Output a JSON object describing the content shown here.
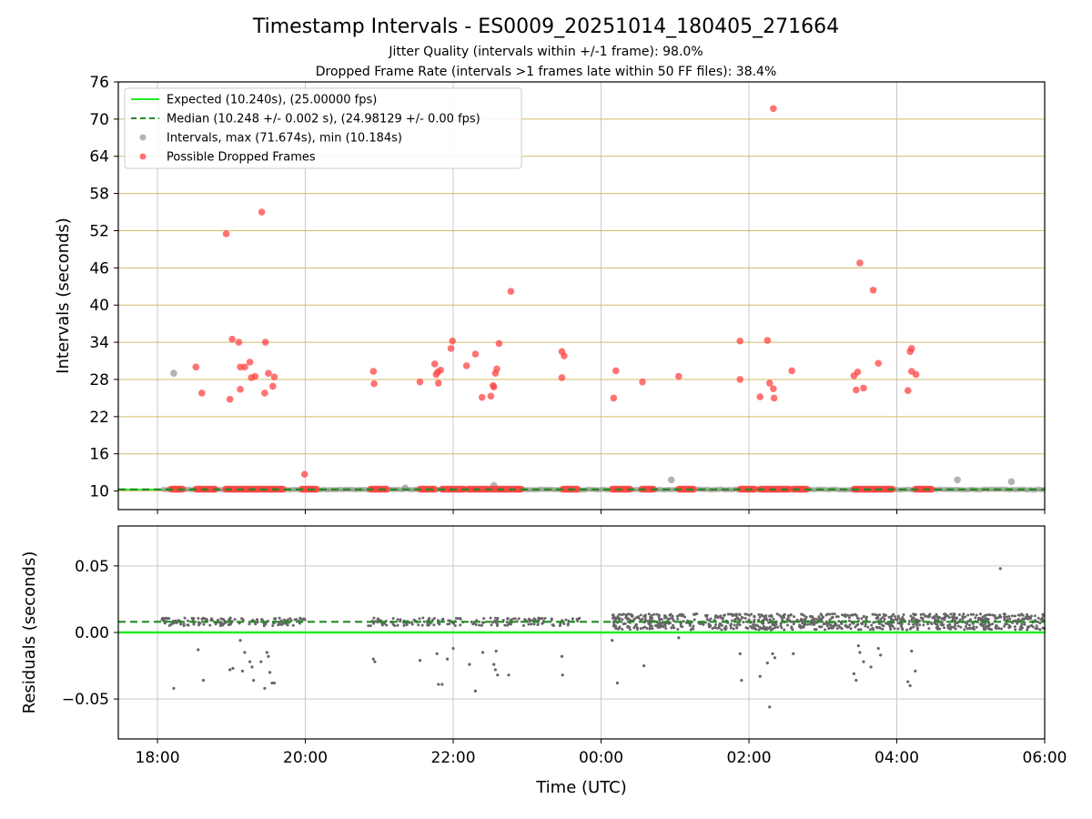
{
  "title": "Timestamp Intervals - ES0009_20251014_180405_271664",
  "subtitle_1": "Jitter Quality (intervals within +/-1 frame): 98.0%",
  "subtitle_2": "Dropped Frame Rate (intervals >1 frames late within 50 FF files): 38.4%",
  "colors": {
    "expected": "#22ee22",
    "median": "#228b22",
    "intervals": "#999999",
    "dropped": "#ff4444",
    "hgrid_top": "#d4bc6a",
    "grid": "#c8c8c8",
    "residual_points": "#666666"
  },
  "chart_data": [
    {
      "type": "scatter",
      "panel": "top",
      "ylabel": "Intervals (seconds)",
      "ylim": [
        7,
        76
      ],
      "yticks": [
        "10",
        "16",
        "22",
        "28",
        "34",
        "40",
        "46",
        "52",
        "58",
        "64",
        "70",
        "76"
      ],
      "yticks_values": [
        10,
        16,
        22,
        28,
        34,
        40,
        46,
        52,
        58,
        64,
        70,
        76
      ],
      "xlim_hours": [
        17.47,
        30.0
      ],
      "expected_value": 10.24,
      "median_value": 10.248,
      "legend": {
        "expected": "Expected (10.240s), (25.00000 fps)",
        "median": "Median (10.248 +/- 0.002 s), (24.98129 +/- 0.00 fps)",
        "intervals": "Intervals, max (71.674s), min (10.184s)",
        "dropped": "Possible Dropped Frames"
      },
      "intervals_outliers": [
        {
          "x": 18.22,
          "y": 29.0
        },
        {
          "x": 21.35,
          "y": 10.5
        },
        {
          "x": 22.55,
          "y": 10.9
        },
        {
          "x": 24.95,
          "y": 11.8
        },
        {
          "x": 28.82,
          "y": 11.8
        },
        {
          "x": 29.55,
          "y": 11.5
        }
      ],
      "dropped_cluster_y": 10.3,
      "dropped_clusters": [
        [
          18.18,
          18.35
        ],
        [
          18.52,
          18.78
        ],
        [
          18.92,
          19.7
        ],
        [
          19.95,
          20.15
        ],
        [
          20.88,
          21.1
        ],
        [
          21.55,
          21.75
        ],
        [
          21.85,
          22.15
        ],
        [
          22.2,
          22.92
        ],
        [
          23.48,
          23.68
        ],
        [
          24.15,
          24.4
        ],
        [
          24.55,
          24.72
        ],
        [
          25.05,
          25.25
        ],
        [
          25.88,
          26.08
        ],
        [
          26.15,
          26.55
        ],
        [
          26.6,
          26.78
        ],
        [
          27.42,
          27.95
        ],
        [
          28.25,
          28.48
        ]
      ],
      "dropped_points": [
        {
          "x": 18.52,
          "y": 30.0
        },
        {
          "x": 18.6,
          "y": 25.8
        },
        {
          "x": 18.93,
          "y": 51.5
        },
        {
          "x": 18.98,
          "y": 24.8
        },
        {
          "x": 19.01,
          "y": 34.5
        },
        {
          "x": 19.1,
          "y": 34.0
        },
        {
          "x": 19.12,
          "y": 30.0
        },
        {
          "x": 19.12,
          "y": 26.4
        },
        {
          "x": 19.18,
          "y": 30.0
        },
        {
          "x": 19.25,
          "y": 30.8
        },
        {
          "x": 19.27,
          "y": 28.3
        },
        {
          "x": 19.32,
          "y": 28.5
        },
        {
          "x": 19.41,
          "y": 55.0
        },
        {
          "x": 19.45,
          "y": 25.8
        },
        {
          "x": 19.46,
          "y": 34.0
        },
        {
          "x": 19.5,
          "y": 29.0
        },
        {
          "x": 19.56,
          "y": 26.9
        },
        {
          "x": 19.58,
          "y": 28.4
        },
        {
          "x": 19.99,
          "y": 12.7
        },
        {
          "x": 20.92,
          "y": 29.3
        },
        {
          "x": 20.93,
          "y": 27.3
        },
        {
          "x": 21.55,
          "y": 27.6
        },
        {
          "x": 21.75,
          "y": 30.5
        },
        {
          "x": 21.77,
          "y": 28.8
        },
        {
          "x": 21.79,
          "y": 29.2
        },
        {
          "x": 21.8,
          "y": 27.4
        },
        {
          "x": 21.83,
          "y": 29.5
        },
        {
          "x": 21.97,
          "y": 33.0
        },
        {
          "x": 21.99,
          "y": 34.2
        },
        {
          "x": 22.18,
          "y": 30.2
        },
        {
          "x": 22.3,
          "y": 32.1
        },
        {
          "x": 22.39,
          "y": 25.1
        },
        {
          "x": 22.51,
          "y": 25.3
        },
        {
          "x": 22.54,
          "y": 27.0
        },
        {
          "x": 22.55,
          "y": 26.8
        },
        {
          "x": 22.57,
          "y": 29.0
        },
        {
          "x": 22.59,
          "y": 29.7
        },
        {
          "x": 22.62,
          "y": 33.8
        },
        {
          "x": 22.78,
          "y": 42.2
        },
        {
          "x": 23.47,
          "y": 32.5
        },
        {
          "x": 23.5,
          "y": 31.8
        },
        {
          "x": 23.47,
          "y": 28.3
        },
        {
          "x": 24.2,
          "y": 29.4
        },
        {
          "x": 24.17,
          "y": 25.0
        },
        {
          "x": 24.56,
          "y": 27.6
        },
        {
          "x": 25.05,
          "y": 28.5
        },
        {
          "x": 25.88,
          "y": 34.2
        },
        {
          "x": 25.88,
          "y": 28.0
        },
        {
          "x": 26.15,
          "y": 25.2
        },
        {
          "x": 26.25,
          "y": 34.3
        },
        {
          "x": 26.28,
          "y": 27.4
        },
        {
          "x": 26.33,
          "y": 26.5
        },
        {
          "x": 26.34,
          "y": 25.0
        },
        {
          "x": 26.33,
          "y": 71.7
        },
        {
          "x": 26.58,
          "y": 29.4
        },
        {
          "x": 27.42,
          "y": 28.6
        },
        {
          "x": 27.45,
          "y": 26.3
        },
        {
          "x": 27.47,
          "y": 29.2
        },
        {
          "x": 27.5,
          "y": 46.8
        },
        {
          "x": 27.55,
          "y": 26.6
        },
        {
          "x": 27.68,
          "y": 42.4
        },
        {
          "x": 27.75,
          "y": 30.6
        },
        {
          "x": 28.15,
          "y": 26.2
        },
        {
          "x": 28.18,
          "y": 32.5
        },
        {
          "x": 28.2,
          "y": 33.0
        },
        {
          "x": 28.2,
          "y": 29.3
        },
        {
          "x": 28.26,
          "y": 28.8
        }
      ]
    },
    {
      "type": "scatter",
      "panel": "bottom",
      "ylabel": "Residuals (seconds)",
      "xlabel": "Time (UTC)",
      "ylim": [
        -0.08,
        0.08
      ],
      "yticks": [
        "−0.05",
        "0.00",
        "0.05"
      ],
      "yticks_values": [
        -0.05,
        0.0,
        0.05
      ],
      "xlim_hours": [
        17.47,
        30.0
      ],
      "xticks": [
        "18:00",
        "20:00",
        "22:00",
        "00:00",
        "02:00",
        "04:00",
        "06:00"
      ],
      "xticks_hours": [
        18,
        20,
        22,
        24,
        26,
        28,
        30
      ],
      "expected_value": 0.0,
      "median_value": 0.008,
      "residual_bands": [
        {
          "from": 18.05,
          "to": 20.0,
          "center": 0.008,
          "spread": 0.003,
          "density": 140
        },
        {
          "from": 20.85,
          "to": 23.8,
          "center": 0.008,
          "spread": 0.003,
          "density": 160
        },
        {
          "from": 24.15,
          "to": 30.0,
          "center": 0.008,
          "spread": 0.006,
          "density": 900
        }
      ],
      "residual_outliers": [
        {
          "x": 18.22,
          "y": -0.042
        },
        {
          "x": 18.55,
          "y": -0.013
        },
        {
          "x": 18.62,
          "y": -0.036
        },
        {
          "x": 18.98,
          "y": -0.028
        },
        {
          "x": 19.02,
          "y": -0.027
        },
        {
          "x": 19.12,
          "y": -0.006
        },
        {
          "x": 19.15,
          "y": -0.029
        },
        {
          "x": 19.18,
          "y": -0.015
        },
        {
          "x": 19.25,
          "y": -0.022
        },
        {
          "x": 19.28,
          "y": -0.026
        },
        {
          "x": 19.3,
          "y": -0.036
        },
        {
          "x": 19.4,
          "y": -0.022
        },
        {
          "x": 19.45,
          "y": -0.042
        },
        {
          "x": 19.48,
          "y": -0.015
        },
        {
          "x": 19.5,
          "y": -0.018
        },
        {
          "x": 19.52,
          "y": -0.03
        },
        {
          "x": 19.55,
          "y": -0.038
        },
        {
          "x": 19.58,
          "y": -0.038
        },
        {
          "x": 20.92,
          "y": -0.02
        },
        {
          "x": 20.94,
          "y": -0.022
        },
        {
          "x": 21.55,
          "y": -0.021
        },
        {
          "x": 21.78,
          "y": -0.016
        },
        {
          "x": 21.8,
          "y": -0.039
        },
        {
          "x": 21.85,
          "y": -0.039
        },
        {
          "x": 21.92,
          "y": -0.02
        },
        {
          "x": 22.0,
          "y": -0.012
        },
        {
          "x": 22.22,
          "y": -0.024
        },
        {
          "x": 22.3,
          "y": -0.044
        },
        {
          "x": 22.4,
          "y": -0.015
        },
        {
          "x": 22.55,
          "y": -0.024
        },
        {
          "x": 22.57,
          "y": -0.028
        },
        {
          "x": 22.58,
          "y": -0.014
        },
        {
          "x": 22.6,
          "y": -0.032
        },
        {
          "x": 22.75,
          "y": -0.032
        },
        {
          "x": 23.47,
          "y": -0.018
        },
        {
          "x": 23.48,
          "y": -0.032
        },
        {
          "x": 24.15,
          "y": -0.006
        },
        {
          "x": 24.22,
          "y": -0.038
        },
        {
          "x": 24.58,
          "y": -0.025
        },
        {
          "x": 25.05,
          "y": -0.004
        },
        {
          "x": 25.88,
          "y": -0.016
        },
        {
          "x": 25.9,
          "y": -0.036
        },
        {
          "x": 26.15,
          "y": -0.033
        },
        {
          "x": 26.25,
          "y": -0.023
        },
        {
          "x": 26.28,
          "y": -0.056
        },
        {
          "x": 26.32,
          "y": -0.016
        },
        {
          "x": 26.35,
          "y": -0.019
        },
        {
          "x": 26.6,
          "y": -0.016
        },
        {
          "x": 27.42,
          "y": -0.031
        },
        {
          "x": 27.45,
          "y": -0.036
        },
        {
          "x": 27.48,
          "y": -0.01
        },
        {
          "x": 27.5,
          "y": -0.015
        },
        {
          "x": 27.55,
          "y": -0.022
        },
        {
          "x": 27.65,
          "y": -0.026
        },
        {
          "x": 27.75,
          "y": -0.012
        },
        {
          "x": 27.78,
          "y": -0.017
        },
        {
          "x": 28.15,
          "y": -0.037
        },
        {
          "x": 28.18,
          "y": -0.04
        },
        {
          "x": 28.2,
          "y": -0.014
        },
        {
          "x": 28.25,
          "y": -0.029
        },
        {
          "x": 29.4,
          "y": 0.048
        },
        {
          "x": 26.3,
          "y": 0.002
        }
      ]
    }
  ]
}
